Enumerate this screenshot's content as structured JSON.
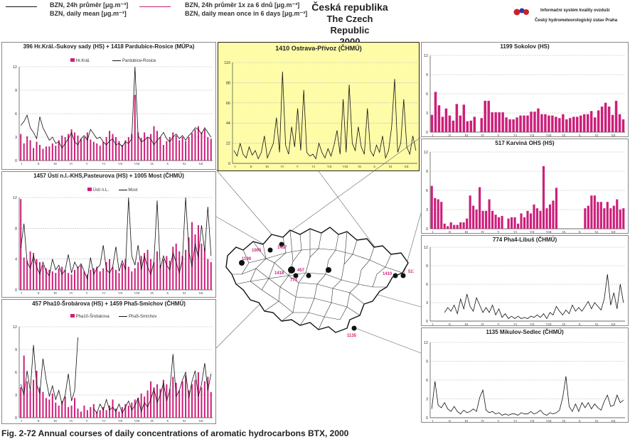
{
  "header": {
    "legend_black_cz": "BZN, 24h průměr [μg.m⁻³]",
    "legend_black_en": "BZN, daily mean [μg.m⁻³]",
    "legend_pink_cz": "BZN, 24h průměr 1x za 6 dnů [μg.m⁻³]",
    "legend_pink_en": "BZN, daily mean once in 6 days [μg.m⁻³]",
    "title_cz": "Česká republika",
    "title_en": "The Czech Republic",
    "year": "2000",
    "logo_line1": "Informační systém kvality ovzduší",
    "logo_line2": "Český hydrometeorologický ústav Praha",
    "colors": {
      "pink": "#cc1f7a",
      "black": "#111111",
      "yellow": "#fffca8"
    }
  },
  "caption": "Fig. 2-72  Annual courses of daily concentrations of aromatic hydrocarbons BTX, 2000",
  "map": {
    "labels": [
      "1005",
      "1457",
      "1199",
      "1418",
      "457",
      "774",
      "1410",
      "517",
      "1135"
    ]
  },
  "chart_data": [
    {
      "type": "line",
      "title": "396 Hr.Král.-Sukovy sady (HS) + 1418 Pardubice-Rosice (MÚPa)",
      "ylim": [
        0,
        12
      ],
      "yticks": [
        "0",
        "3",
        "6",
        "9",
        "12"
      ],
      "months": [
        "I",
        "II",
        "III",
        "IV",
        "V",
        "VI",
        "VII",
        "VIII",
        "IX",
        "X",
        "XI",
        "XII"
      ],
      "series": [
        {
          "name": "Hr.Král.",
          "kind": "bar",
          "values": [
            3.4,
            2.2,
            3.1,
            2.6,
            1.6,
            2.4,
            2.0,
            1.5,
            1.8,
            1.8,
            2.2,
            1.9,
            2.6,
            3.2,
            3.0,
            3.4,
            4.0,
            3.6,
            3.2,
            2.8,
            3.0,
            3.6,
            2.7,
            2.4,
            2.2,
            1.9,
            2.4,
            3.0,
            3.8,
            3.4,
            3.0,
            2.5,
            2.0,
            2.6,
            3.0,
            3.4,
            8.4,
            3.6,
            2.9,
            3.6,
            3.0,
            3.4,
            4.4,
            3.8,
            3.0,
            2.0,
            2.5,
            3.0,
            3.6,
            3.2,
            2.6,
            3.0,
            2.5,
            3.0,
            3.5,
            4.0,
            4.4,
            3.6,
            4.0,
            3.0,
            2.8
          ]
        },
        {
          "name": "Pardubice-Rosice",
          "kind": "line",
          "values": [
            4.5,
            5.0,
            5.8,
            4.2,
            3.6,
            2.8,
            5.6,
            4.2,
            3.4,
            2.6,
            3.0,
            2.2,
            2.4,
            1.6,
            2.2,
            2.8,
            3.6,
            2.4,
            2.0,
            2.8,
            3.2,
            2.6,
            4.0,
            3.4,
            2.8,
            3.0,
            2.4,
            2.0,
            2.5,
            2.8,
            2.0,
            2.2,
            1.8,
            2.4,
            2.2,
            2.8,
            12.0,
            3.2,
            2.4,
            2.6,
            3.0,
            2.8,
            2.0,
            2.6,
            3.0,
            3.6,
            2.8,
            2.4,
            3.0,
            3.4,
            2.8,
            3.2,
            2.6,
            3.2,
            3.6,
            4.2,
            4.0,
            3.4,
            4.2,
            3.6,
            3.0
          ]
        }
      ]
    },
    {
      "type": "line",
      "title": "1410 Ostrava-Přívoz (ČHMÚ)",
      "ylim": [
        0,
        110
      ],
      "yticks": [
        "0",
        "22",
        "44",
        "66",
        "88",
        "110"
      ],
      "months": [
        "I",
        "II",
        "III",
        "IV",
        "V",
        "VI",
        "VII",
        "VIII",
        "IX",
        "X",
        "XI",
        "XII"
      ],
      "series": [
        {
          "name": "Ostrava-Přívoz",
          "kind": "line",
          "values": [
            14,
            8,
            22,
            10,
            6,
            18,
            9,
            14,
            5,
            12,
            30,
            6,
            14,
            22,
            50,
            12,
            100,
            20,
            10,
            40,
            18,
            60,
            14,
            80,
            12,
            8,
            10,
            5,
            22,
            12,
            6,
            16,
            8,
            20,
            36,
            10,
            70,
            12,
            86,
            22,
            14,
            40,
            18,
            10,
            60,
            14,
            8,
            20,
            12,
            30,
            6,
            14,
            40,
            92,
            12,
            22,
            70,
            18,
            10,
            30,
            14
          ]
        }
      ]
    },
    {
      "type": "bar",
      "title": "1199 Sokolov (HS)",
      "ylim": [
        0,
        12
      ],
      "yticks": [
        "0",
        "3",
        "6",
        "9",
        "12"
      ],
      "months": [
        "I",
        "II",
        "III",
        "IV",
        "V",
        "VI",
        "VII",
        "VIII",
        "IX",
        "X",
        "XI",
        "XII"
      ],
      "series": [
        {
          "name": "Sokolov",
          "kind": "bar",
          "values": [
            2.7,
            6.3,
            4.2,
            2.4,
            3.7,
            2.6,
            1.8,
            4.4,
            2.6,
            4.3,
            1.7,
            1.8,
            2.4,
            0,
            2.2,
            4.9,
            4.9,
            3.1,
            3.1,
            3.1,
            3.1,
            2.3,
            2.0,
            2.0,
            2.3,
            2.6,
            2.6,
            2.6,
            3.2,
            3.2,
            3.7,
            2.8,
            2.8,
            2.6,
            2.6,
            2.4,
            2.2,
            2.8,
            2.0,
            2.2,
            2.4,
            2.4,
            2.6,
            2.8,
            2.8,
            3.3,
            2.3,
            3.4,
            4.0,
            4.6,
            4.0,
            2.7,
            4.9,
            2.8,
            2.0
          ]
        }
      ]
    },
    {
      "type": "line",
      "title": "1457  Ústí n.l.-KHS,Pasteurova (HS) + 1005 Most (ČHMÚ)",
      "ylim": [
        0,
        12
      ],
      "yticks": [
        "0",
        "4",
        "8",
        "12"
      ],
      "months": [
        "I",
        "II",
        "III",
        "IV",
        "V",
        "VI",
        "VII",
        "VIII",
        "IX",
        "X",
        "XI",
        "XII"
      ],
      "series": [
        {
          "name": "Ústí n.L.",
          "kind": "bar",
          "values": [
            11.8,
            4.2,
            3.8,
            5.0,
            4.8,
            4.0,
            3.6,
            3.2,
            2.8,
            2.6,
            2.4,
            2.2,
            2.8,
            3.0,
            2.6,
            2.2,
            2.0,
            2.6,
            3.0,
            3.2,
            2.4,
            2.0,
            2.6,
            2.8,
            3.0,
            2.4,
            2.8,
            3.6,
            4.0,
            3.0,
            2.6,
            2.2,
            3.4,
            4.0,
            3.0,
            2.4,
            2.8,
            3.6,
            4.4,
            4.8,
            5.2,
            4.0,
            3.6,
            5.0,
            3.2,
            4.0,
            4.4,
            3.8,
            5.6,
            6.0,
            5.0,
            4.4,
            5.2,
            6.8,
            8.8,
            7.2,
            8.4,
            6.0,
            5.4,
            4.0,
            3.6
          ]
        },
        {
          "name": "Most",
          "kind": "line",
          "values": [
            5.4,
            8.6,
            3.6,
            2.8,
            4.4,
            3.0,
            2.0,
            3.6,
            2.4,
            1.8,
            4.0,
            2.6,
            3.2,
            2.0,
            2.6,
            4.6,
            2.2,
            3.6,
            2.8,
            3.4,
            2.4,
            1.4,
            4.2,
            2.0,
            2.8,
            3.2,
            5.8,
            2.6,
            2.2,
            3.0,
            5.6,
            2.4,
            3.8,
            2.6,
            12.0,
            4.4,
            3.2,
            5.8,
            2.6,
            4.4,
            3.0,
            2.0,
            3.6,
            11.6,
            2.8,
            4.4,
            3.2,
            2.6,
            4.8,
            3.6,
            2.2,
            4.0,
            12.0,
            5.0,
            3.0,
            6.0,
            4.2,
            8.4,
            5.0,
            10.8,
            4.4
          ]
        }
      ]
    },
    {
      "type": "bar",
      "title": "517 Karviná OHS (HS)",
      "ylim": [
        0,
        12
      ],
      "yticks": [
        "0",
        "3",
        "6",
        "9",
        "12"
      ],
      "months": [
        "I",
        "II",
        "III",
        "IV",
        "V",
        "VI",
        "VII",
        "VIII",
        "IX",
        "X",
        "XI",
        "XII"
      ],
      "series": [
        {
          "name": "Karviná",
          "kind": "bar",
          "values": [
            6.7,
            4.8,
            4.6,
            4.2,
            0.8,
            0.4,
            1.0,
            0.6,
            0.6,
            1.0,
            1.0,
            1.6,
            5.2,
            3.6,
            3.0,
            6.5,
            2.8,
            2.8,
            4.6,
            2.8,
            2.2,
            1.8,
            2.0,
            0,
            1.6,
            1.8,
            1.8,
            0.8,
            2.4,
            1.8,
            2.8,
            2.4,
            3.8,
            3.2,
            2.8,
            9.8,
            3.2,
            3.8,
            4.4,
            6.4,
            0,
            0,
            0,
            0,
            0,
            0,
            0,
            0,
            3.2,
            3.6,
            5.2,
            5.2,
            4.2,
            4.2,
            3.2,
            4.2,
            3.2,
            3.6,
            4.6,
            3.0,
            3.2
          ]
        }
      ]
    },
    {
      "type": "line",
      "title": "457 Pha10-Šrobárova (HS) + 1459 Pha5-Smíchov (ČHMÚ)",
      "ylim": [
        0,
        12
      ],
      "yticks": [
        "0",
        "3",
        "6",
        "9",
        "12"
      ],
      "months": [
        "I",
        "II",
        "III",
        "IV",
        "V",
        "VI",
        "VII",
        "VIII",
        "IX",
        "X",
        "XI",
        "XII"
      ],
      "series": [
        {
          "name": "Pha10-Šrobárova",
          "kind": "bar",
          "values": [
            4.0,
            8.2,
            4.8,
            3.6,
            5.0,
            6.2,
            4.0,
            3.4,
            2.6,
            2.4,
            3.2,
            2.0,
            1.6,
            2.2,
            2.8,
            1.4,
            1.6,
            2.6,
            1.2,
            0.8,
            1.6,
            1.0,
            1.4,
            1.8,
            0.8,
            1.0,
            1.4,
            1.0,
            1.6,
            2.4,
            1.2,
            0.8,
            1.4,
            1.8,
            1.6,
            2.0,
            2.4,
            2.6,
            3.2,
            2.8,
            3.6,
            4.8,
            4.0,
            4.4,
            3.8,
            5.0,
            4.4,
            3.8,
            5.4,
            4.6,
            3.6,
            4.8,
            5.6,
            3.6,
            4.4,
            5.0,
            6.0,
            4.0,
            4.8,
            5.4,
            3.4
          ]
        },
        {
          "name": "Pha5-Smíchov",
          "kind": "line",
          "values": [
            4.4,
            3.0,
            6.2,
            3.6,
            9.6,
            4.4,
            3.2,
            7.8,
            5.0,
            2.8,
            4.2,
            2.4,
            3.6,
            1.8,
            3.0,
            5.8,
            2.2,
            3.6,
            10.6,
            0,
            0,
            0,
            0,
            1.2,
            0.6,
            1.8,
            1.0,
            2.4,
            1.0,
            1.4,
            0.8,
            1.8,
            0.6,
            1.4,
            2.2,
            1.0,
            1.6,
            2.6,
            0.8,
            2.0,
            1.4,
            2.4,
            3.8,
            2.0,
            3.0,
            4.6,
            2.2,
            3.6,
            8.4,
            2.8,
            3.6,
            5.0,
            6.0,
            2.6,
            4.8,
            6.2,
            2.8,
            4.4,
            7.2,
            3.6,
            5.8
          ]
        }
      ]
    },
    {
      "type": "line",
      "title": "774 Pha4-Libuš (ČHMÚ)",
      "ylim": [
        0,
        12
      ],
      "yticks": [
        "0",
        "3",
        "6",
        "9",
        "12"
      ],
      "months": [
        "I",
        "II",
        "III",
        "IV",
        "V",
        "VI",
        "VII",
        "VIII",
        "IX",
        "X",
        "XI",
        "XII"
      ],
      "series": [
        {
          "name": "Pha4-Libuš",
          "kind": "line",
          "values": [
            0,
            0,
            0,
            0,
            1.4,
            2.2,
            1.6,
            2.6,
            1.2,
            3.6,
            2.0,
            4.4,
            2.4,
            1.6,
            3.8,
            2.6,
            1.4,
            2.2,
            1.4,
            2.6,
            1.0,
            2.0,
            0.6,
            1.2,
            0.4,
            0.8,
            0.4,
            0.8,
            0.4,
            0.6,
            0.4,
            0.8,
            0.6,
            1.0,
            0.6,
            1.2,
            0.4,
            1.4,
            1.0,
            2.4,
            1.6,
            1.0,
            1.8,
            1.2,
            2.6,
            1.6,
            2.2,
            1.6,
            2.4,
            3.2,
            2.0,
            3.0,
            2.4,
            1.8,
            3.6,
            7.6,
            2.6,
            4.6,
            2.0,
            6.0,
            3.0
          ]
        }
      ]
    },
    {
      "type": "line",
      "title": "1135 Mikulov-Sedlec (ČHMÚ)",
      "ylim": [
        0,
        12
      ],
      "yticks": [
        "0",
        "3",
        "6",
        "9",
        "12"
      ],
      "months": [
        "I",
        "II",
        "III",
        "IV",
        "V",
        "VI",
        "VII",
        "VIII",
        "IX",
        "X",
        "XI",
        "XII"
      ],
      "series": [
        {
          "name": "Mikulov-Sedlec",
          "kind": "line",
          "values": [
            1.4,
            5.8,
            2.0,
            1.6,
            2.4,
            1.4,
            1.0,
            1.8,
            1.0,
            0.6,
            1.2,
            0.8,
            1.0,
            1.4,
            1.0,
            3.2,
            4.4,
            1.2,
            0.8,
            1.0,
            0.6,
            0.8,
            0.4,
            0.6,
            0.4,
            0.6,
            0.6,
            0.4,
            0.8,
            0.6,
            0.6,
            1.0,
            0.6,
            0.8,
            1.2,
            0.6,
            0.4,
            0.8,
            0.6,
            0.8,
            1.2,
            3.2,
            6.6,
            1.8,
            1.0,
            2.2,
            1.0,
            2.4,
            1.6,
            2.4,
            1.4,
            2.2,
            1.6,
            1.2,
            2.6,
            3.6,
            1.8,
            2.0,
            3.6,
            2.4,
            2.8
          ]
        }
      ]
    }
  ]
}
